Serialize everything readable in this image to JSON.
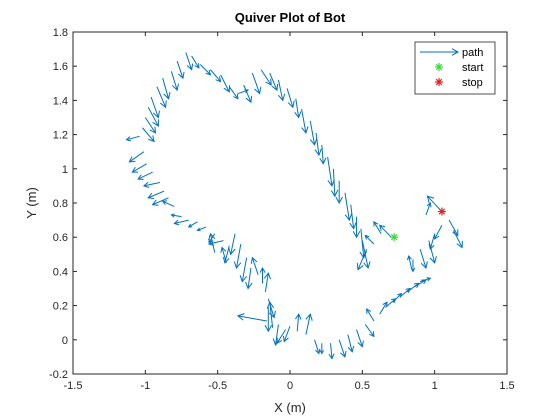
{
  "chart_data": {
    "type": "quiver",
    "title": "Quiver Plot of Bot",
    "xlabel": "X (m)",
    "ylabel": "Y (m)",
    "xlim": [
      -1.5,
      1.5
    ],
    "ylim": [
      -0.2,
      1.8
    ],
    "xticks": [
      -1.5,
      -1,
      -0.5,
      0,
      0.5,
      1,
      1.5
    ],
    "yticks": [
      -0.2,
      0,
      0.2,
      0.4,
      0.6,
      0.8,
      1,
      1.2,
      1.4,
      1.6,
      1.8
    ],
    "xtick_labels": [
      "-1.5",
      "-1",
      "-0.5",
      "0",
      "0.5",
      "1",
      "1.5"
    ],
    "ytick_labels": [
      "-0.2",
      "0",
      "0.2",
      "0.4",
      "0.6",
      "0.8",
      "1",
      "1.2",
      "1.4",
      "1.6",
      "1.8"
    ],
    "grid": false,
    "legend": {
      "position": "top-right",
      "entries": [
        {
          "label": "path",
          "marker": "arrow",
          "color": "#0072BD"
        },
        {
          "label": "start",
          "marker": "asterisk",
          "color": "#33DD33"
        },
        {
          "label": "stop",
          "marker": "asterisk",
          "color": "#DD2222"
        }
      ]
    },
    "colors": {
      "arrow": "#0072BD",
      "start": "#33DD33",
      "stop": "#DD2222"
    },
    "start": [
      0.72,
      0.6
    ],
    "stop": [
      1.05,
      0.75
    ],
    "arrows": [
      [
        0.7,
        0.6,
        -0.08,
        0.07
      ],
      [
        0.63,
        0.62,
        -0.05,
        0.07
      ],
      [
        0.58,
        0.56,
        -0.06,
        0.05
      ],
      [
        0.53,
        0.53,
        -0.06,
        -0.12
      ],
      [
        0.5,
        0.58,
        0.04,
        -0.16
      ],
      [
        0.49,
        0.65,
        0.02,
        -0.17
      ],
      [
        0.46,
        0.72,
        0.0,
        -0.12
      ],
      [
        0.42,
        0.79,
        0.02,
        -0.14
      ],
      [
        0.38,
        0.86,
        0.03,
        -0.16
      ],
      [
        0.34,
        0.93,
        0.0,
        -0.13
      ],
      [
        0.3,
        1.0,
        0.01,
        -0.16
      ],
      [
        0.26,
        1.07,
        0.03,
        -0.17
      ],
      [
        0.22,
        1.14,
        0.01,
        -0.11
      ],
      [
        0.18,
        1.21,
        0.02,
        -0.13
      ],
      [
        0.14,
        1.28,
        0.03,
        -0.14
      ],
      [
        0.08,
        1.35,
        0.03,
        -0.14
      ],
      [
        0.04,
        1.41,
        0.02,
        -0.11
      ],
      [
        -0.02,
        1.47,
        0.04,
        -0.11
      ],
      [
        -0.08,
        1.52,
        0.03,
        -0.12
      ],
      [
        -0.14,
        1.56,
        0.05,
        -0.1
      ],
      [
        -0.2,
        1.58,
        0.07,
        -0.09
      ],
      [
        -0.26,
        1.56,
        0.05,
        -0.12
      ],
      [
        -0.32,
        1.49,
        0.05,
        -0.1
      ],
      [
        -0.36,
        1.44,
        0.07,
        0.02
      ],
      [
        -0.42,
        1.48,
        0.06,
        -0.07
      ],
      [
        -0.48,
        1.55,
        0.06,
        -0.1
      ],
      [
        -0.55,
        1.58,
        0.07,
        -0.07
      ],
      [
        -0.62,
        1.61,
        0.07,
        -0.06
      ],
      [
        -0.68,
        1.66,
        0.05,
        -0.07
      ],
      [
        -0.72,
        1.68,
        0.04,
        -0.1
      ],
      [
        -0.78,
        1.63,
        0.04,
        -0.1
      ],
      [
        -0.82,
        1.57,
        0.04,
        -0.11
      ],
      [
        -0.88,
        1.53,
        0.04,
        -0.12
      ],
      [
        -0.92,
        1.48,
        0.06,
        -0.12
      ],
      [
        -0.96,
        1.42,
        0.05,
        -0.12
      ],
      [
        -0.98,
        1.36,
        0.07,
        -0.11
      ],
      [
        -1.0,
        1.3,
        0.07,
        -0.09
      ],
      [
        -1.02,
        1.24,
        0.08,
        -0.08
      ],
      [
        -1.04,
        1.19,
        -0.09,
        -0.02
      ],
      [
        -1.01,
        1.1,
        -0.1,
        -0.06
      ],
      [
        -0.99,
        1.03,
        -0.1,
        -0.05
      ],
      [
        -0.95,
        0.98,
        -0.1,
        -0.04
      ],
      [
        -0.9,
        0.92,
        -0.11,
        -0.02
      ],
      [
        -0.87,
        0.87,
        -0.11,
        -0.04
      ],
      [
        -0.84,
        0.83,
        -0.11,
        -0.04
      ],
      [
        -0.8,
        0.78,
        -0.08,
        0.03
      ],
      [
        -0.75,
        0.72,
        -0.07,
        0.01
      ],
      [
        -0.7,
        0.7,
        -0.1,
        -0.02
      ],
      [
        -0.64,
        0.69,
        -0.06,
        -0.03
      ],
      [
        -0.58,
        0.66,
        -0.06,
        -0.02
      ],
      [
        -0.52,
        0.62,
        -0.04,
        -0.05
      ],
      [
        -0.46,
        0.58,
        -0.1,
        -0.02
      ],
      [
        -0.52,
        0.51,
        -0.03,
        0.11
      ],
      [
        -0.44,
        0.45,
        -0.03,
        0.09
      ],
      [
        -0.42,
        0.55,
        -0.03,
        -0.1
      ],
      [
        -0.38,
        0.62,
        -0.03,
        -0.12
      ],
      [
        -0.34,
        0.56,
        -0.03,
        -0.14
      ],
      [
        -0.3,
        0.48,
        -0.03,
        -0.14
      ],
      [
        -0.27,
        0.42,
        -0.02,
        -0.12
      ],
      [
        -0.22,
        0.38,
        -0.04,
        0.1
      ],
      [
        -0.19,
        0.33,
        0.0,
        0.09
      ],
      [
        -0.17,
        0.28,
        0.02,
        0.11
      ],
      [
        -0.15,
        0.24,
        0.04,
        -0.11
      ],
      [
        -0.15,
        0.19,
        0.0,
        -0.14
      ],
      [
        -0.16,
        0.11,
        -0.2,
        0.03
      ],
      [
        -0.12,
        0.07,
        -0.02,
        0.15
      ],
      [
        -0.08,
        0.09,
        -0.02,
        -0.12
      ],
      [
        -0.03,
        0.06,
        -0.06,
        -0.08
      ],
      [
        0.0,
        0.08,
        -0.04,
        -0.09
      ],
      [
        0.05,
        0.05,
        0.01,
        0.1
      ],
      [
        0.11,
        0.03,
        0.03,
        0.12
      ],
      [
        0.17,
        0.0,
        0.03,
        -0.08
      ],
      [
        0.22,
        -0.02,
        0.0,
        -0.06
      ],
      [
        0.28,
        -0.02,
        0.01,
        -0.09
      ],
      [
        0.34,
        0.0,
        0.04,
        -0.1
      ],
      [
        0.4,
        0.03,
        0.03,
        -0.1
      ],
      [
        0.46,
        0.06,
        0.04,
        -0.1
      ],
      [
        0.52,
        0.09,
        0.06,
        -0.07
      ],
      [
        0.58,
        0.11,
        -0.05,
        0.07
      ],
      [
        0.62,
        0.15,
        0.05,
        0.07
      ],
      [
        0.66,
        0.19,
        0.07,
        0.05
      ],
      [
        0.71,
        0.22,
        0.06,
        0.05
      ],
      [
        0.76,
        0.25,
        0.07,
        0.05
      ],
      [
        0.81,
        0.28,
        0.08,
        0.05
      ],
      [
        0.86,
        0.31,
        0.08,
        0.04
      ],
      [
        0.9,
        0.34,
        0.07,
        0.02
      ],
      [
        0.84,
        0.42,
        -0.02,
        0.07
      ],
      [
        0.85,
        0.47,
        0.0,
        -0.07
      ],
      [
        0.9,
        0.53,
        0.04,
        -0.11
      ],
      [
        0.96,
        0.58,
        0.04,
        -0.13
      ],
      [
        1.0,
        0.62,
        -0.03,
        -0.09
      ],
      [
        1.05,
        0.67,
        -0.05,
        -0.08
      ],
      [
        1.1,
        0.7,
        0.06,
        -0.09
      ],
      [
        1.13,
        0.64,
        0.06,
        -0.1
      ],
      [
        1.05,
        0.75,
        -0.1,
        0.09
      ],
      [
        0.94,
        0.73,
        0.03,
        0.07
      ]
    ]
  }
}
